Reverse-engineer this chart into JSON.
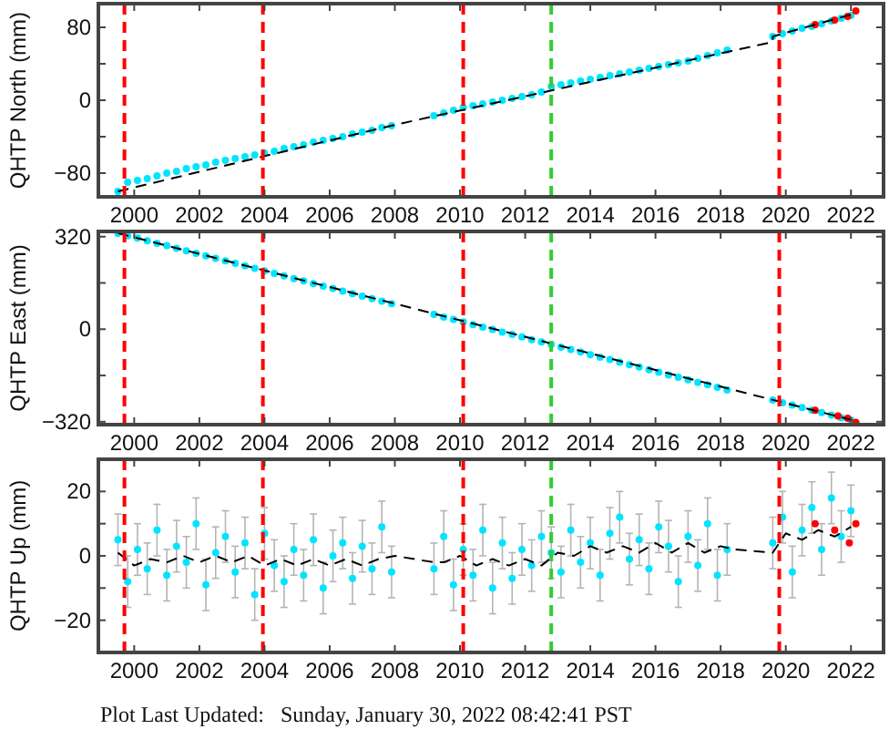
{
  "chart_data": [
    {
      "type": "scatter",
      "ylabel": "QHTP North (mm)",
      "xlim": [
        1998.9,
        2023.0
      ],
      "xticks": [
        2000,
        2002,
        2004,
        2006,
        2008,
        2010,
        2012,
        2014,
        2016,
        2018,
        2020,
        2022
      ],
      "ylim": [
        -106,
        106
      ],
      "yticks": [
        -80,
        {
          "value": -40,
          "label": null
        },
        0,
        {
          "value": 40,
          "label": null
        },
        80
      ],
      "series": [
        {
          "marker": "circle",
          "color": "#00e5ff",
          "x": [
            1999.5,
            1999.8,
            2000.1,
            2000.4,
            2000.7,
            2001.0,
            2001.3,
            2001.6,
            2001.9,
            2002.2,
            2002.5,
            2002.8,
            2003.1,
            2003.4,
            2003.7,
            2004.0,
            2004.3,
            2004.6,
            2004.9,
            2005.2,
            2005.5,
            2005.8,
            2006.1,
            2006.4,
            2006.7,
            2007.0,
            2007.3,
            2007.6,
            2007.9,
            2009.2,
            2009.5,
            2009.8,
            2010.1,
            2010.4,
            2010.7,
            2011.0,
            2011.3,
            2011.6,
            2011.9,
            2012.2,
            2012.5,
            2012.8,
            2013.1,
            2013.4,
            2013.7,
            2014.0,
            2014.3,
            2014.6,
            2014.9,
            2015.2,
            2015.5,
            2015.8,
            2016.1,
            2016.4,
            2016.7,
            2017.0,
            2017.3,
            2017.6,
            2017.9,
            2018.2,
            2019.6,
            2019.9,
            2020.2,
            2020.5,
            2020.8,
            2021.1,
            2021.4,
            2021.7,
            2022.0
          ],
          "values": [
            -100,
            -90,
            -88,
            -86,
            -83,
            -80,
            -78,
            -75,
            -73,
            -71,
            -68,
            -66,
            -64,
            -62,
            -60,
            -58,
            -56,
            -53,
            -51,
            -49,
            -46,
            -44,
            -42,
            -40,
            -37,
            -35,
            -33,
            -30,
            -28,
            -17,
            -14,
            -11,
            -8,
            -6,
            -4,
            -2,
            0,
            2,
            4,
            6,
            9,
            15,
            17,
            19,
            21,
            23,
            25,
            27,
            29,
            31,
            33,
            35,
            37,
            39,
            41,
            43,
            46,
            49,
            52,
            55,
            70,
            73,
            76,
            79,
            81,
            84,
            87,
            90,
            93
          ]
        },
        {
          "type": "scatter",
          "marker": "circle",
          "color": "#ff0000",
          "x": [
            2020.9,
            2021.5,
            2021.9,
            2022.15
          ],
          "values": [
            83,
            88,
            92,
            98
          ]
        },
        {
          "type": "line",
          "marker": "none",
          "color": "#000000",
          "line_style": "dashed",
          "x": [
            1999.5,
            2008,
            2019.6,
            2019.6,
            2022.1
          ],
          "values": [
            -100,
            -27,
            64,
            70,
            95
          ]
        }
      ],
      "ref_lines": [
        {
          "axis": "x",
          "value": 1999.7,
          "color": "#ff0000",
          "line_style": "dashed"
        },
        {
          "axis": "x",
          "value": 2003.95,
          "color": "#ff0000",
          "line_style": "dashed"
        },
        {
          "axis": "x",
          "value": 2010.1,
          "color": "#ff0000",
          "line_style": "dashed"
        },
        {
          "axis": "x",
          "value": 2012.8,
          "color": "#33cc33",
          "line_style": "dashed"
        },
        {
          "axis": "x",
          "value": 2019.8,
          "color": "#ff0000",
          "line_style": "dashed"
        }
      ]
    },
    {
      "type": "scatter",
      "ylabel": "QHTP East (mm)",
      "xlim": [
        1998.9,
        2023.0
      ],
      "xticks": [
        2000,
        2002,
        2004,
        2006,
        2008,
        2010,
        2012,
        2014,
        2016,
        2018,
        2020,
        2022
      ],
      "ylim": [
        -330,
        338
      ],
      "yticks": [
        -320,
        {
          "value": -160,
          "label": null
        },
        0,
        {
          "value": 160,
          "label": null
        },
        320
      ],
      "series": [
        {
          "marker": "circle",
          "color": "#00e5ff",
          "x": [
            1999.5,
            1999.8,
            2000.1,
            2000.4,
            2000.7,
            2001.0,
            2001.3,
            2001.6,
            2001.9,
            2002.2,
            2002.5,
            2002.8,
            2003.1,
            2003.4,
            2003.7,
            2004.0,
            2004.3,
            2004.6,
            2004.9,
            2005.2,
            2005.5,
            2005.8,
            2006.1,
            2006.4,
            2006.7,
            2007.0,
            2007.3,
            2007.6,
            2007.9,
            2009.2,
            2009.5,
            2009.8,
            2010.1,
            2010.4,
            2010.7,
            2011.0,
            2011.3,
            2011.6,
            2011.9,
            2012.2,
            2012.5,
            2012.8,
            2013.1,
            2013.4,
            2013.7,
            2014.0,
            2014.3,
            2014.6,
            2014.9,
            2015.2,
            2015.5,
            2015.8,
            2016.1,
            2016.4,
            2016.7,
            2017.0,
            2017.3,
            2017.6,
            2017.9,
            2018.2,
            2019.6,
            2019.9,
            2020.2,
            2020.5,
            2020.8,
            2021.1,
            2021.4,
            2021.7,
            2022.0
          ],
          "values": [
            332,
            323,
            315,
            306,
            297,
            289,
            280,
            271,
            262,
            254,
            245,
            236,
            228,
            219,
            210,
            202,
            193,
            184,
            175,
            167,
            158,
            149,
            141,
            132,
            123,
            114,
            106,
            97,
            88,
            51,
            42,
            34,
            25,
            16,
            7,
            -1,
            -10,
            -18,
            -27,
            -36,
            -44,
            -53,
            -62,
            -70,
            -79,
            -88,
            -97,
            -105,
            -114,
            -123,
            -131,
            -140,
            -149,
            -158,
            -166,
            -175,
            -184,
            -192,
            -201,
            -210,
            -245,
            -254,
            -262,
            -271,
            -280,
            -288,
            -297,
            -306,
            -314
          ]
        },
        {
          "type": "scatter",
          "marker": "circle",
          "color": "#ff0000",
          "x": [
            2020.9,
            2021.6,
            2021.9,
            2022.15
          ],
          "values": [
            -280,
            -300,
            -308,
            -322
          ]
        },
        {
          "type": "line",
          "marker": "none",
          "color": "#000000",
          "line_style": "dashed",
          "x": [
            1999.5,
            2022.1
          ],
          "values": [
            332,
            -316
          ]
        }
      ],
      "ref_lines": [
        {
          "axis": "x",
          "value": 1999.7,
          "color": "#ff0000",
          "line_style": "dashed"
        },
        {
          "axis": "x",
          "value": 2003.95,
          "color": "#ff0000",
          "line_style": "dashed"
        },
        {
          "axis": "x",
          "value": 2010.1,
          "color": "#ff0000",
          "line_style": "dashed"
        },
        {
          "axis": "x",
          "value": 2012.8,
          "color": "#33cc33",
          "line_style": "dashed"
        },
        {
          "axis": "x",
          "value": 2019.8,
          "color": "#ff0000",
          "line_style": "dashed"
        }
      ]
    },
    {
      "type": "scatter",
      "ylabel": "QHTP Up (mm)",
      "xlim": [
        1998.9,
        2023.0
      ],
      "xticks": [
        2000,
        2002,
        2004,
        2006,
        2008,
        2010,
        2012,
        2014,
        2016,
        2018,
        2020,
        2022
      ],
      "ylim": [
        -30,
        30
      ],
      "yticks": [
        -20,
        {
          "value": -10,
          "label": null
        },
        0,
        {
          "value": 10,
          "label": null
        },
        20
      ],
      "series": [
        {
          "marker": "circle",
          "color": "#00e5ff",
          "x": [
            1999.5,
            1999.8,
            2000.1,
            2000.4,
            2000.7,
            2001.0,
            2001.3,
            2001.6,
            2001.9,
            2002.2,
            2002.5,
            2002.8,
            2003.1,
            2003.4,
            2003.7,
            2004.0,
            2004.3,
            2004.6,
            2004.9,
            2005.2,
            2005.5,
            2005.8,
            2006.1,
            2006.4,
            2006.7,
            2007.0,
            2007.3,
            2007.6,
            2007.9,
            2009.2,
            2009.5,
            2009.8,
            2010.1,
            2010.4,
            2010.7,
            2011.0,
            2011.3,
            2011.6,
            2011.9,
            2012.2,
            2012.5,
            2012.8,
            2013.1,
            2013.4,
            2013.7,
            2014.0,
            2014.3,
            2014.6,
            2014.9,
            2015.2,
            2015.5,
            2015.8,
            2016.1,
            2016.4,
            2016.7,
            2017.0,
            2017.3,
            2017.6,
            2017.9,
            2018.2,
            2019.6,
            2019.9,
            2020.2,
            2020.5,
            2020.8,
            2021.1,
            2021.4,
            2021.7,
            2022.0
          ],
          "values": [
            5,
            -8,
            2,
            -4,
            8,
            -6,
            3,
            -2,
            10,
            -9,
            1,
            6,
            -5,
            4,
            -12,
            7,
            -3,
            -8,
            2,
            -6,
            5,
            -10,
            0,
            4,
            -7,
            3,
            -4,
            9,
            -5,
            -4,
            6,
            -9,
            2,
            -6,
            8,
            -10,
            4,
            -7,
            2,
            -3,
            6,
            1,
            -5,
            8,
            -2,
            4,
            -6,
            7,
            12,
            -1,
            5,
            -4,
            9,
            3,
            -8,
            6,
            -3,
            10,
            -6,
            2,
            4,
            12,
            -5,
            8,
            15,
            2,
            18,
            6,
            14
          ],
          "errors": [
            8,
            8,
            8,
            8,
            8,
            8,
            8,
            8,
            8,
            8,
            8,
            8,
            8,
            8,
            8,
            8,
            8,
            8,
            8,
            8,
            8,
            8,
            8,
            8,
            8,
            8,
            8,
            8,
            8,
            8,
            8,
            8,
            8,
            8,
            8,
            8,
            8,
            8,
            8,
            8,
            8,
            8,
            8,
            8,
            8,
            8,
            8,
            8,
            8,
            8,
            8,
            8,
            8,
            8,
            8,
            8,
            8,
            8,
            8,
            8,
            8,
            8,
            8,
            8,
            8,
            8,
            8,
            8,
            8
          ]
        },
        {
          "type": "scatter",
          "marker": "circle",
          "color": "#ff0000",
          "x": [
            2020.9,
            2021.5,
            2021.95,
            2022.15
          ],
          "values": [
            10,
            8,
            4,
            10
          ]
        },
        {
          "type": "line",
          "marker": "none",
          "color": "#000000",
          "line_style": "dashed",
          "x": [
            1999.5,
            2000,
            2000.5,
            2001,
            2001.5,
            2002,
            2002.5,
            2003,
            2003.5,
            2004,
            2004.5,
            2005,
            2005.5,
            2006,
            2006.5,
            2007,
            2007.5,
            2008,
            2009.2,
            2009.5,
            2010,
            2010.5,
            2011,
            2011.5,
            2012,
            2012.5,
            2013,
            2013.5,
            2014,
            2014.5,
            2015,
            2015.5,
            2016,
            2016.5,
            2017,
            2017.5,
            2018,
            2018.4,
            2019.6,
            2020,
            2020.5,
            2021,
            2021.5,
            2022
          ],
          "values": [
            1,
            -3,
            -1,
            -2,
            0,
            -2,
            0,
            -2,
            0,
            -3,
            -1,
            -3,
            -1,
            -3,
            -1,
            -3,
            -1,
            0,
            -2,
            -2,
            0,
            -3,
            -1,
            -3,
            -1,
            -3,
            1,
            0,
            3,
            1,
            3,
            1,
            4,
            1,
            4,
            1,
            3,
            2,
            1,
            7,
            5,
            8,
            6,
            9
          ]
        }
      ],
      "ref_lines": [
        {
          "axis": "x",
          "value": 1999.7,
          "color": "#ff0000",
          "line_style": "dashed"
        },
        {
          "axis": "x",
          "value": 2003.95,
          "color": "#ff0000",
          "line_style": "dashed"
        },
        {
          "axis": "x",
          "value": 2010.1,
          "color": "#ff0000",
          "line_style": "dashed"
        },
        {
          "axis": "x",
          "value": 2012.8,
          "color": "#33cc33",
          "line_style": "dashed"
        },
        {
          "axis": "x",
          "value": 2019.8,
          "color": "#ff0000",
          "line_style": "dashed"
        }
      ],
      "annotations": [
        "Plot Last Updated:   Sunday, January 30, 2022 08:42:41 PST"
      ]
    }
  ]
}
